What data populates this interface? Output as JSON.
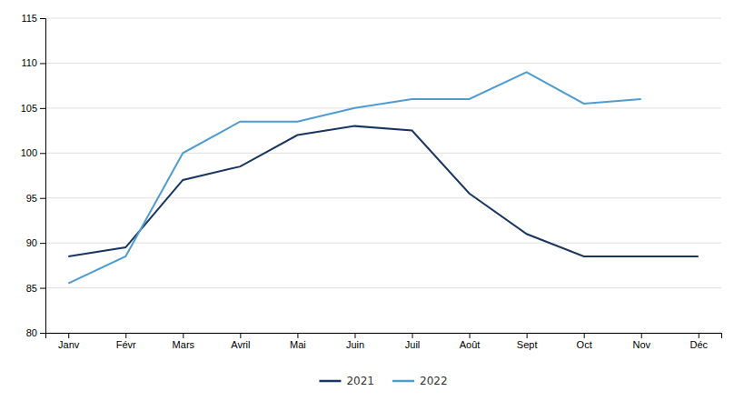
{
  "chart_data": {
    "type": "line",
    "categories": [
      "Janv",
      "Févr",
      "Mars",
      "Avril",
      "Mai",
      "Juin",
      "Juil",
      "Août",
      "Sept",
      "Oct",
      "Nov",
      "Déc"
    ],
    "series": [
      {
        "name": "2021",
        "color": "#1a3560",
        "values": [
          88.5,
          89.5,
          97.0,
          98.5,
          102.0,
          103.0,
          102.5,
          95.5,
          91.0,
          88.5,
          88.5,
          88.5
        ]
      },
      {
        "name": "2022",
        "color": "#4e9cd0",
        "values": [
          85.5,
          88.5,
          100.0,
          103.5,
          103.5,
          105.0,
          106.0,
          106.0,
          109.0,
          105.5,
          106.0,
          null
        ]
      }
    ],
    "ylim": [
      80,
      115
    ],
    "yticks": [
      80,
      85,
      90,
      95,
      100,
      105,
      110,
      115
    ],
    "grid": true,
    "legend": "bottom"
  }
}
